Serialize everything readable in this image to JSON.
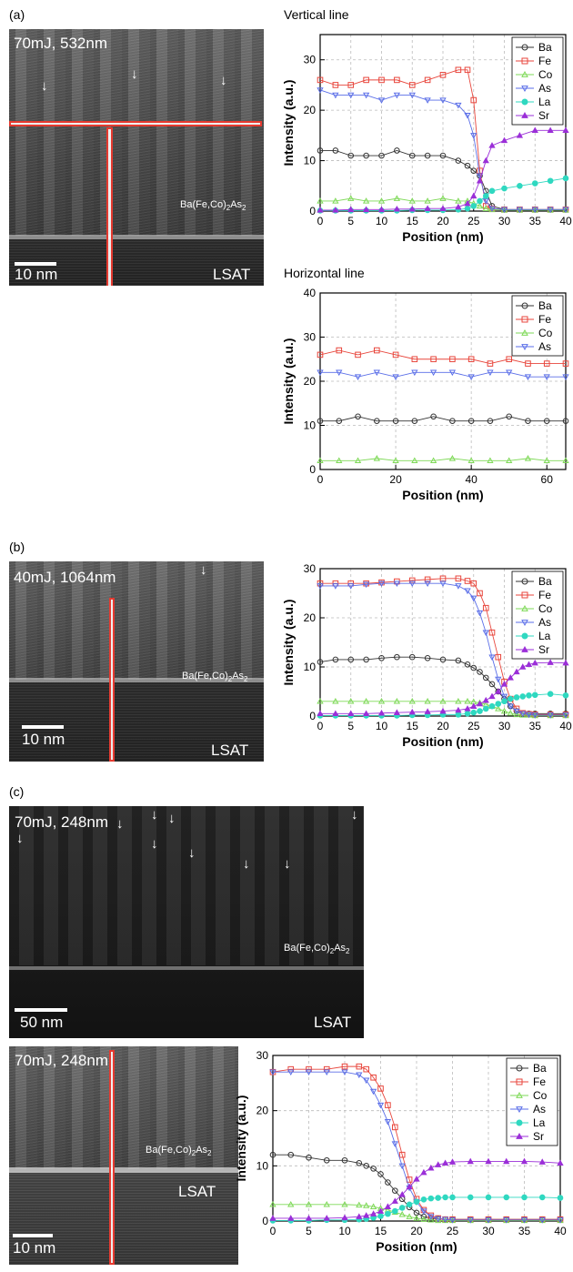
{
  "panels": [
    {
      "label": "(a)"
    },
    {
      "label": "(b)"
    },
    {
      "label": "(c)"
    }
  ],
  "images": {
    "a": {
      "caption": "70mJ, 532nm",
      "film": "Ba(Fe,Co)",
      "film_sub": "2",
      "film_tail": "As",
      "film_tail_sub": "2",
      "scale": "10 nm",
      "substrate": "LSAT"
    },
    "b": {
      "caption": "40mJ, 1064nm",
      "film": "Ba(Fe,Co)",
      "film_sub": "2",
      "film_tail": "As",
      "film_tail_sub": "2",
      "scale": "10 nm",
      "substrate": "LSAT"
    },
    "c1": {
      "caption": "70mJ, 248nm",
      "film": "Ba(Fe,Co)",
      "film_sub": "2",
      "film_tail": "As",
      "film_tail_sub": "2",
      "scale": "50 nm",
      "substrate": "LSAT"
    },
    "c2": {
      "caption": "70mJ, 248nm",
      "film": "Ba(Fe,Co)",
      "film_sub": "2",
      "film_tail": "As",
      "film_tail_sub": "2",
      "scale": "10 nm",
      "substrate": "LSAT"
    }
  },
  "colors": {
    "Ba": "#333333",
    "Fe": "#e8463c",
    "Co": "#7ed957",
    "As": "#5a6ee8",
    "La": "#2fd8c0",
    "Sr": "#9b2fd8"
  },
  "chart_data": [
    {
      "id": "a1",
      "type": "line",
      "title": "Vertical line",
      "xlabel": "Position (nm)",
      "ylabel": "Intensity (a.u.)",
      "xlim": [
        0,
        40
      ],
      "ylim": [
        0,
        35
      ],
      "xticks": [
        0,
        5,
        10,
        15,
        20,
        25,
        30,
        35,
        40
      ],
      "yticks": [
        0,
        10,
        20,
        30
      ],
      "grid": true,
      "legend": "top-right",
      "x": [
        0,
        2.5,
        5,
        7.5,
        10,
        12.5,
        15,
        17.5,
        20,
        22.5,
        24,
        25,
        26,
        27,
        28,
        30,
        32.5,
        35,
        37.5,
        40
      ],
      "series": [
        {
          "name": "Ba",
          "values": [
            12,
            12,
            11,
            11,
            11,
            12,
            11,
            11,
            11,
            10,
            9,
            8,
            7,
            4,
            1,
            0.3,
            0.3,
            0.3,
            0.3,
            0.3
          ]
        },
        {
          "name": "Fe",
          "values": [
            26,
            25,
            25,
            26,
            26,
            26,
            25,
            26,
            27,
            28,
            28,
            22,
            8,
            1,
            0.5,
            0.3,
            0.3,
            0.3,
            0.3,
            0.3
          ]
        },
        {
          "name": "Co",
          "values": [
            2,
            2,
            2.5,
            2,
            2,
            2.5,
            2,
            2,
            2.5,
            2,
            2,
            1.5,
            1,
            0.5,
            0.3,
            0.2,
            0.2,
            0.2,
            0.2,
            0.2
          ]
        },
        {
          "name": "As",
          "values": [
            24,
            23,
            23,
            23,
            22,
            23,
            23,
            22,
            22,
            21,
            19,
            15,
            7,
            2,
            0.5,
            0.3,
            0.3,
            0.3,
            0.3,
            0.3
          ]
        },
        {
          "name": "La",
          "values": [
            0.1,
            0.1,
            0.1,
            0.1,
            0.1,
            0.1,
            0.2,
            0.2,
            0.2,
            0.3,
            0.5,
            1,
            2,
            3,
            4,
            4.5,
            5,
            5.5,
            6,
            6.5
          ]
        },
        {
          "name": "Sr",
          "values": [
            0.2,
            0.2,
            0.3,
            0.3,
            0.3,
            0.4,
            0.4,
            0.5,
            0.5,
            0.8,
            1.5,
            3,
            6,
            10,
            13,
            14,
            15,
            16,
            16,
            16
          ]
        }
      ]
    },
    {
      "id": "a2",
      "type": "line",
      "title": "Horizontal line",
      "xlabel": "Position (nm)",
      "ylabel": "Intensity (a.u.)",
      "xlim": [
        0,
        65
      ],
      "ylim": [
        0,
        40
      ],
      "xticks": [
        0,
        20,
        40,
        60
      ],
      "yticks": [
        0,
        10,
        20,
        30,
        40
      ],
      "grid": true,
      "legend": "top-right",
      "x": [
        0,
        5,
        10,
        15,
        20,
        25,
        30,
        35,
        40,
        45,
        50,
        55,
        60,
        65
      ],
      "series": [
        {
          "name": "Ba",
          "values": [
            11,
            11,
            12,
            11,
            11,
            11,
            12,
            11,
            11,
            11,
            12,
            11,
            11,
            11
          ]
        },
        {
          "name": "Fe",
          "values": [
            26,
            27,
            26,
            27,
            26,
            25,
            25,
            25,
            25,
            24,
            25,
            24,
            24,
            24
          ]
        },
        {
          "name": "Co",
          "values": [
            2,
            2,
            2,
            2.5,
            2,
            2,
            2,
            2.5,
            2,
            2,
            2,
            2.5,
            2,
            2
          ]
        },
        {
          "name": "As",
          "values": [
            22,
            22,
            21,
            22,
            21,
            22,
            22,
            22,
            21,
            22,
            22,
            21,
            21,
            21
          ]
        }
      ]
    },
    {
      "id": "b",
      "type": "line",
      "title": "",
      "xlabel": "Position (nm)",
      "ylabel": "Intensity (a.u.)",
      "xlim": [
        0,
        40
      ],
      "ylim": [
        0,
        30
      ],
      "xticks": [
        0,
        5,
        10,
        15,
        20,
        25,
        30,
        35,
        40
      ],
      "yticks": [
        0,
        10,
        20,
        30
      ],
      "grid": true,
      "legend": "top-right",
      "x": [
        0,
        2.5,
        5,
        7.5,
        10,
        12.5,
        15,
        17.5,
        20,
        22.5,
        24,
        25,
        26,
        27,
        28,
        29,
        30,
        31,
        32,
        33,
        34,
        35,
        37.5,
        40
      ],
      "series": [
        {
          "name": "Ba",
          "values": [
            11,
            11.5,
            11.5,
            11.5,
            11.8,
            12,
            12,
            11.8,
            11.5,
            11.3,
            10.5,
            9.8,
            9,
            7.8,
            6.5,
            5,
            3.5,
            2,
            1,
            0.6,
            0.5,
            0.5,
            0.5,
            0.5
          ]
        },
        {
          "name": "Fe",
          "values": [
            27,
            27,
            27,
            27,
            27.2,
            27.4,
            27.6,
            27.8,
            28,
            28,
            27.5,
            27,
            25,
            22,
            17,
            12,
            7,
            3.5,
            1.5,
            0.6,
            0.4,
            0.3,
            0.3,
            0.3
          ]
        },
        {
          "name": "Co",
          "values": [
            3,
            3,
            3,
            3,
            3,
            3,
            3,
            3,
            3,
            3,
            3,
            2.9,
            2.7,
            2.4,
            2,
            1.5,
            1,
            0.6,
            0.3,
            0.2,
            0.2,
            0.1,
            0.1,
            0.1
          ]
        },
        {
          "name": "As",
          "values": [
            26.5,
            26.5,
            26.5,
            26.8,
            27,
            27,
            27,
            27,
            27,
            26.5,
            25.5,
            24,
            21,
            17,
            12,
            7.5,
            4,
            2,
            1,
            0.5,
            0.3,
            0.2,
            0.2,
            0.2
          ]
        },
        {
          "name": "La",
          "values": [
            0.1,
            0.1,
            0.1,
            0.1,
            0.1,
            0.1,
            0.2,
            0.2,
            0.3,
            0.3,
            0.5,
            0.7,
            1,
            1.5,
            2,
            2.5,
            3,
            3.5,
            3.8,
            4,
            4.2,
            4.3,
            4.5,
            4.2
          ]
        },
        {
          "name": "Sr",
          "values": [
            0.5,
            0.5,
            0.5,
            0.5,
            0.6,
            0.7,
            0.8,
            0.9,
            1,
            1.2,
            1.5,
            2,
            2.5,
            3.2,
            4,
            5,
            6.5,
            7.8,
            9,
            10,
            10.5,
            10.8,
            10.9,
            10.8
          ]
        }
      ]
    },
    {
      "id": "c",
      "type": "line",
      "title": "",
      "xlabel": "Position (nm)",
      "ylabel": "Intensity (a.u.)",
      "xlim": [
        0,
        40
      ],
      "ylim": [
        0,
        30
      ],
      "xticks": [
        0,
        5,
        10,
        15,
        20,
        25,
        30,
        35,
        40
      ],
      "yticks": [
        0,
        10,
        20,
        30
      ],
      "grid": true,
      "legend": "top-right",
      "x": [
        0,
        2.5,
        5,
        7.5,
        10,
        12,
        13,
        14,
        15,
        16,
        17,
        18,
        19,
        20,
        21,
        22,
        23,
        24,
        25,
        27.5,
        30,
        32.5,
        35,
        37.5,
        40
      ],
      "series": [
        {
          "name": "Ba",
          "values": [
            12,
            12,
            11.5,
            11,
            11,
            10.5,
            10,
            9.5,
            8.5,
            7,
            5.5,
            4,
            2.5,
            1.5,
            0.8,
            0.5,
            0.4,
            0.3,
            0.3,
            0.3,
            0.3,
            0.3,
            0.3,
            0.3,
            0.3
          ]
        },
        {
          "name": "Fe",
          "values": [
            27,
            27.5,
            27.5,
            27.5,
            28,
            28,
            27.5,
            26,
            24,
            21,
            17,
            12,
            7.5,
            4,
            2,
            1,
            0.5,
            0.3,
            0.3,
            0.3,
            0.3,
            0.3,
            0.3,
            0.3,
            0.3
          ]
        },
        {
          "name": "Co",
          "values": [
            3,
            3,
            3,
            3,
            3,
            2.9,
            2.8,
            2.6,
            2.3,
            2,
            1.6,
            1.2,
            0.8,
            0.5,
            0.3,
            0.2,
            0.1,
            0.1,
            0.1,
            0.1,
            0.1,
            0.1,
            0.1,
            0.1,
            0.1
          ]
        },
        {
          "name": "As",
          "values": [
            27,
            27,
            27,
            27,
            27,
            26.5,
            25.5,
            23.5,
            21,
            18,
            14,
            10,
            6,
            3.5,
            1.8,
            0.8,
            0.4,
            0.3,
            0.2,
            0.2,
            0.2,
            0.2,
            0.2,
            0.2,
            0.2
          ]
        },
        {
          "name": "La",
          "values": [
            0.1,
            0.1,
            0.1,
            0.2,
            0.2,
            0.3,
            0.4,
            0.6,
            0.9,
            1.3,
            1.8,
            2.4,
            3,
            3.5,
            3.9,
            4.1,
            4.2,
            4.3,
            4.3,
            4.3,
            4.3,
            4.3,
            4.3,
            4.3,
            4.2
          ]
        },
        {
          "name": "Sr",
          "values": [
            0.5,
            0.5,
            0.5,
            0.5,
            0.6,
            0.8,
            1,
            1.3,
            1.8,
            2.6,
            3.6,
            4.8,
            6.2,
            7.6,
            8.8,
            9.6,
            10.2,
            10.5,
            10.7,
            10.8,
            10.8,
            10.8,
            10.8,
            10.7,
            10.5
          ]
        }
      ]
    }
  ]
}
